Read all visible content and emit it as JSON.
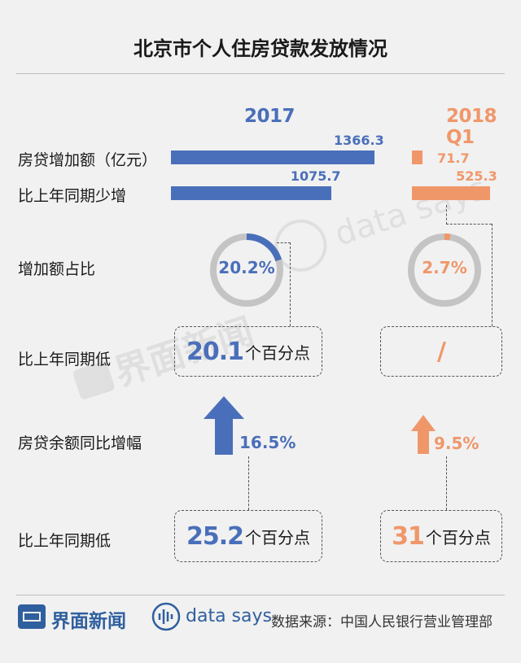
{
  "title": "北京市个人住房贷款发放情况",
  "colors": {
    "y2017": "#4a6fba",
    "y2018": "#f0976a",
    "ring": "#c4c4c4"
  },
  "columns": {
    "y2017": "2017",
    "y2018": "2018 Q1"
  },
  "row_labels": {
    "increase": "房贷增加额（亿元）",
    "less_increase": "比上年同期少增",
    "share": "增加额占比",
    "lower1": "比上年同期低",
    "balance_growth": "房贷余额同比增幅",
    "lower2": "比上年同期低"
  },
  "chart_data": [
    {
      "type": "bar",
      "orientation": "horizontal",
      "categories": [
        "房贷增加额（亿元）",
        "比上年同期少增"
      ],
      "series": [
        {
          "name": "2017",
          "values": [
            1366.3,
            1075.7
          ],
          "labels": [
            "1366.3",
            "1075.7"
          ]
        },
        {
          "name": "2018 Q1",
          "values": [
            71.7,
            525.3
          ],
          "labels": [
            "71.7",
            "525.3"
          ]
        }
      ]
    },
    {
      "type": "pie",
      "categories": [
        "增加额占比"
      ],
      "series": [
        {
          "name": "2017",
          "values": [
            20.2
          ],
          "labels": [
            "20.2%"
          ]
        },
        {
          "name": "2018 Q1",
          "values": [
            2.7
          ],
          "labels": [
            "2.7%"
          ]
        }
      ]
    }
  ],
  "lower_share": {
    "y2017": {
      "num": "20.1",
      "unit": "个百分点"
    },
    "y2018": {
      "text": "/"
    }
  },
  "balance_growth": {
    "y2017": {
      "label": "16.5%",
      "value": 16.5
    },
    "y2018": {
      "label": "9.5%",
      "value": 9.5
    }
  },
  "lower_growth": {
    "y2017": {
      "num": "25.2",
      "unit": "个百分点"
    },
    "y2018": {
      "num": "31",
      "unit": "个百分点"
    }
  },
  "footer": {
    "brand": "界面新闻",
    "datasays": "data says",
    "source": "数据来源：中国人民银行营业管理部"
  },
  "watermark": {
    "brand": "界面新闻",
    "datasays": "data says"
  }
}
